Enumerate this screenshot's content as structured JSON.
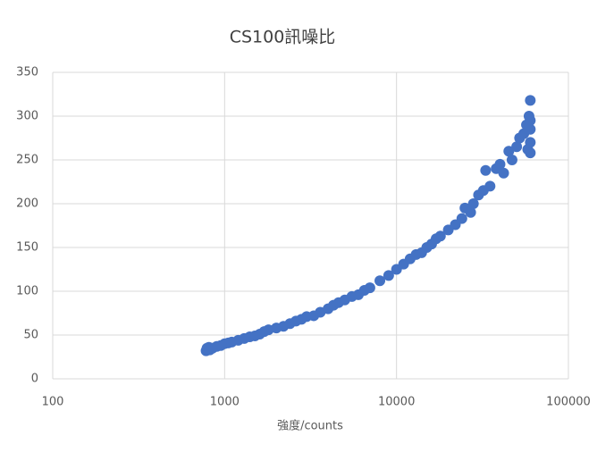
{
  "chart_data": {
    "type": "scatter",
    "title": "CS100訊噪比",
    "x_label": "強度/counts",
    "x_log": true,
    "grid": true,
    "xlim": [
      100,
      100000
    ],
    "xticks": [
      100,
      1000,
      10000,
      100000
    ],
    "ylim": [
      0,
      350
    ],
    "yticks": [
      0,
      50,
      100,
      150,
      200,
      250,
      300,
      350
    ],
    "series": [
      {
        "color": "#4472c4",
        "x": [
          780,
          790,
          800,
          810,
          820,
          850,
          900,
          950,
          1000,
          1050,
          1100,
          1200,
          1300,
          1400,
          1500,
          1600,
          1700,
          1800,
          2000,
          2200,
          2400,
          2600,
          2800,
          3000,
          3300,
          3600,
          4000,
          4300,
          4600,
          5000,
          5500,
          6000,
          6500,
          7000,
          8000,
          9000,
          10000,
          11000,
          12000,
          13000,
          14000,
          15000,
          16000,
          17000,
          18000,
          20000,
          22000,
          24000,
          25000,
          27000,
          28000,
          30000,
          32000,
          33000,
          35000,
          38000,
          40000,
          42000,
          45000,
          47000,
          50000,
          52000,
          55000,
          57000,
          58000,
          59000,
          60000,
          60000,
          60000,
          60000,
          60000
        ],
        "values": [
          32,
          35,
          34,
          36,
          33,
          35,
          37,
          38,
          40,
          41,
          42,
          44,
          46,
          48,
          49,
          51,
          54,
          56,
          58,
          60,
          63,
          66,
          68,
          71,
          72,
          76,
          80,
          84,
          87,
          90,
          94,
          96,
          101,
          104,
          112,
          118,
          125,
          131,
          137,
          142,
          144,
          150,
          154,
          160,
          163,
          170,
          176,
          183,
          195,
          190,
          200,
          210,
          215,
          238,
          220,
          240,
          245,
          235,
          260,
          250,
          265,
          275,
          280,
          290,
          262,
          300,
          318,
          285,
          270,
          258,
          295
        ]
      }
    ]
  }
}
